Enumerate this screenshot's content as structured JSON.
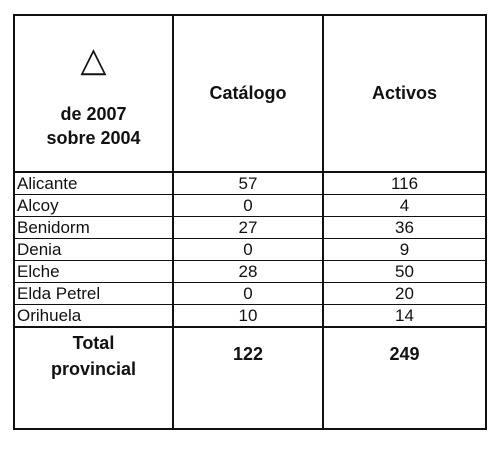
{
  "table": {
    "header": {
      "symbol": "△",
      "label": "de 2007 sobre 2004",
      "columns": [
        "Catálogo",
        "Activos"
      ]
    },
    "rows": [
      [
        "Alicante",
        "57",
        "116"
      ],
      [
        "Alcoy",
        "0",
        "4"
      ],
      [
        "Benidorm",
        "27",
        "36"
      ],
      [
        "Denia",
        "0",
        "9"
      ],
      [
        "Elche",
        "28",
        "50"
      ],
      [
        "Elda Petrel",
        "0",
        "20"
      ],
      [
        "Orihuela",
        "10",
        "14"
      ]
    ],
    "total": [
      "Total provincial",
      "122",
      "249"
    ]
  }
}
